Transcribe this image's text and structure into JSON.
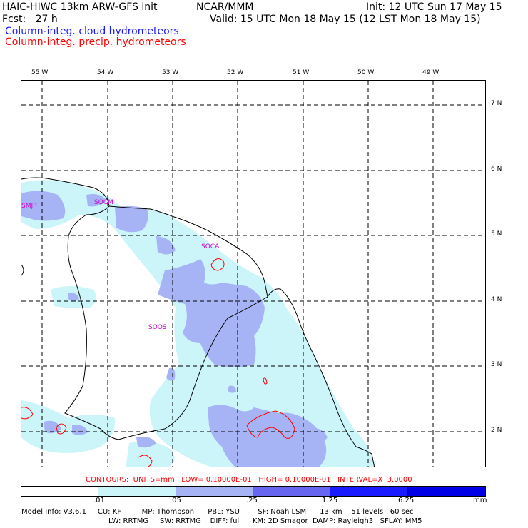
{
  "header": {
    "model_title": "HAIC-HIWC 13km ARW-GFS init",
    "org": "NCAR/MMM",
    "init": "Init: 12 UTC Sun 17 May 15",
    "fcst": "Fcst:   27 h",
    "valid": "Valid: 15 UTC Mon 18 May 15 (12 LST Mon 18 May 15)",
    "field_blue": "Column-integ. cloud hydrometeors",
    "field_red": "Column-integ. precip. hydrometeors",
    "blue_color": "#1a1aff",
    "red_color": "#ff0000"
  },
  "map": {
    "lon_labels": [
      "55 W",
      "54 W",
      "53 W",
      "52 W",
      "51 W",
      "50 W",
      "49 W"
    ],
    "lat_labels": [
      "7 N",
      "6 N",
      "5 N",
      "4 N",
      "3 N",
      "2 N"
    ],
    "stations": [
      "SMJP",
      "SOCM",
      "SOCA",
      "SOOS"
    ],
    "station_color": "#cc00cc"
  },
  "contours": "CONTOURS:  UNITS=mm   LOW= 0.10000E-01   HIGH= 0.10000E-01   INTERVAL=X  3.0000",
  "colorbar": {
    "labels": [
      ".01",
      ".05",
      ".25",
      "1.25",
      "6.25"
    ],
    "unit": "mm",
    "colors": [
      "#ffffff",
      "#ccf5fa",
      "#a6b3f5",
      "#6666f0",
      "#1a1aff",
      "#0000e6"
    ]
  },
  "model_info": {
    "line1": "Model Info: V3.6.1     CU: KF         MP: Thompson      PBL: YSU        SF: Noah LSM      13 km    51 levels   60 sec",
    "line2": "LW: RRTMG     SW: RRTMG    DIFF: full     KM: 2D Smagor  DAMP: Rayleigh3   SFLAY: MM5"
  }
}
